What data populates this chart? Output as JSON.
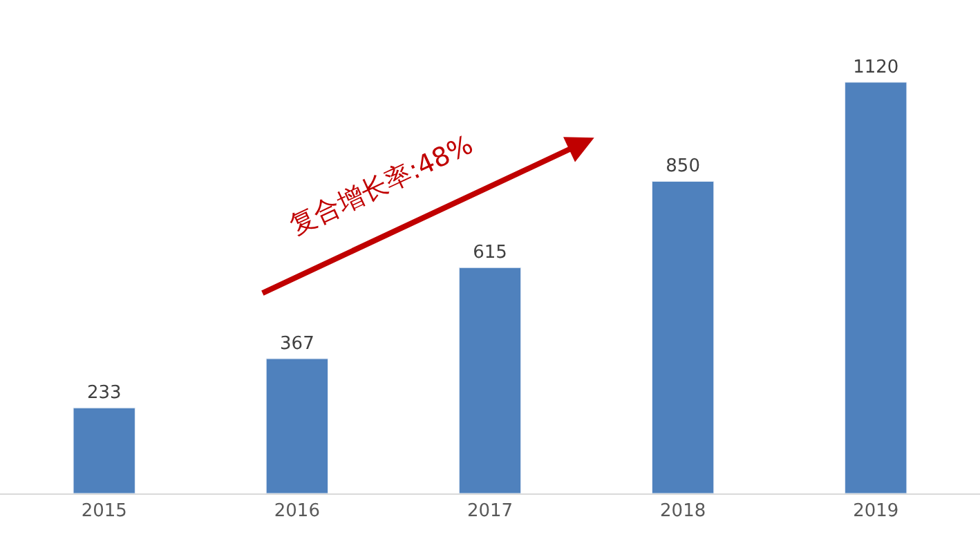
{
  "chart_data": {
    "type": "bar",
    "categories": [
      "2015",
      "2016",
      "2017",
      "2018",
      "2019"
    ],
    "values": [
      233,
      367,
      615,
      850,
      1120
    ],
    "color": "#4f81bd",
    "data_labels": true,
    "legend": false,
    "annotations": [
      "复合增长率:48%"
    ]
  }
}
